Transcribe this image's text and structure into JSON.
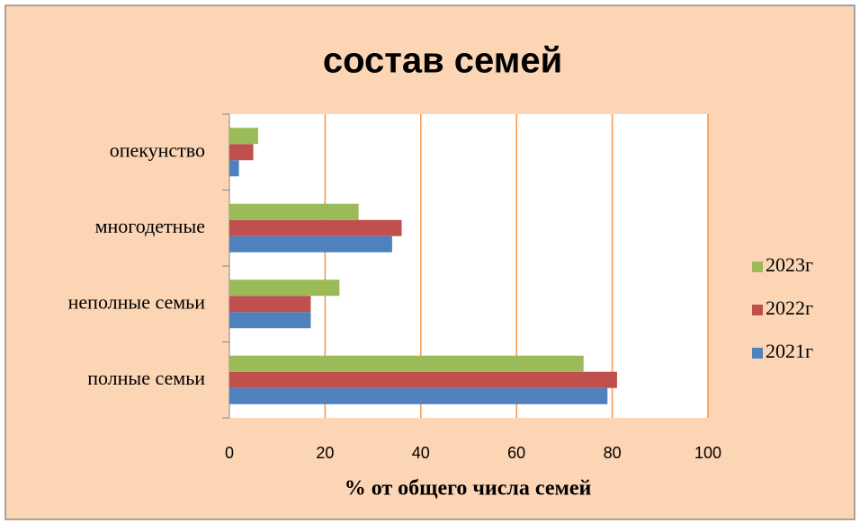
{
  "chart_data": {
    "type": "bar",
    "orientation": "horizontal",
    "title": "состав семей",
    "x_axis_label": "% от общего числа семей",
    "categories": [
      "полные семьи",
      "неполные семьи",
      "многодетные",
      "опекунство"
    ],
    "series": [
      {
        "name": "2021г",
        "color": "#4f81bd",
        "values": [
          79,
          17,
          34,
          2
        ]
      },
      {
        "name": "2022г",
        "color": "#c0504d",
        "values": [
          81,
          17,
          36,
          5
        ]
      },
      {
        "name": "2023г",
        "color": "#9bbb59",
        "values": [
          74,
          23,
          27,
          6
        ]
      }
    ],
    "xlim": [
      0,
      100
    ],
    "xticks": [
      0,
      20,
      40,
      60,
      80,
      100
    ],
    "grid": true,
    "grid_color": "#f79646",
    "legend": "right"
  }
}
